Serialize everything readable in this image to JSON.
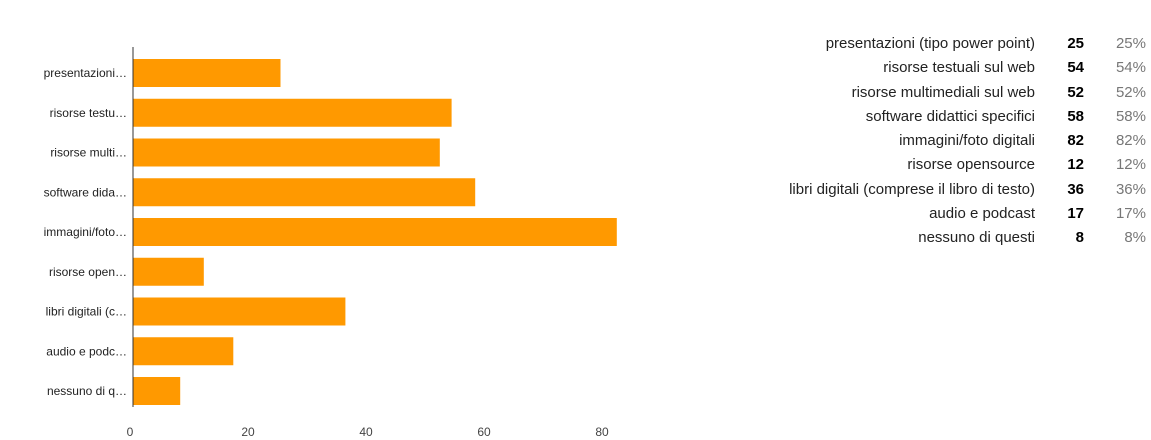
{
  "chart_data": {
    "type": "bar",
    "orientation": "horizontal",
    "categories": [
      "presentazioni (tipo power point)",
      "risorse testuali sul web",
      "risorse multimediali sul web",
      "software didattici specifici",
      "immagini/foto digitali",
      "risorse opensource",
      "libri digitali (comprese il libro di testo)",
      "audio e podcast",
      "nessuno di questi"
    ],
    "axis_labels": [
      "presentazioni…",
      "risorse testu…",
      "risorse multi…",
      "software dida…",
      "immagini/foto…",
      "risorse open…",
      "libri digitali (c…",
      "audio e podc…",
      "nessuno di q…"
    ],
    "values": [
      25,
      54,
      52,
      58,
      82,
      12,
      36,
      17,
      8
    ],
    "percentages": [
      "25%",
      "54%",
      "52%",
      "58%",
      "82%",
      "12%",
      "36%",
      "17%",
      "8%"
    ],
    "xlim": [
      0,
      80
    ],
    "xticks": [
      0,
      20,
      40,
      60,
      80
    ],
    "bar_color": "#ff9900",
    "grid": false,
    "legend": "right"
  }
}
